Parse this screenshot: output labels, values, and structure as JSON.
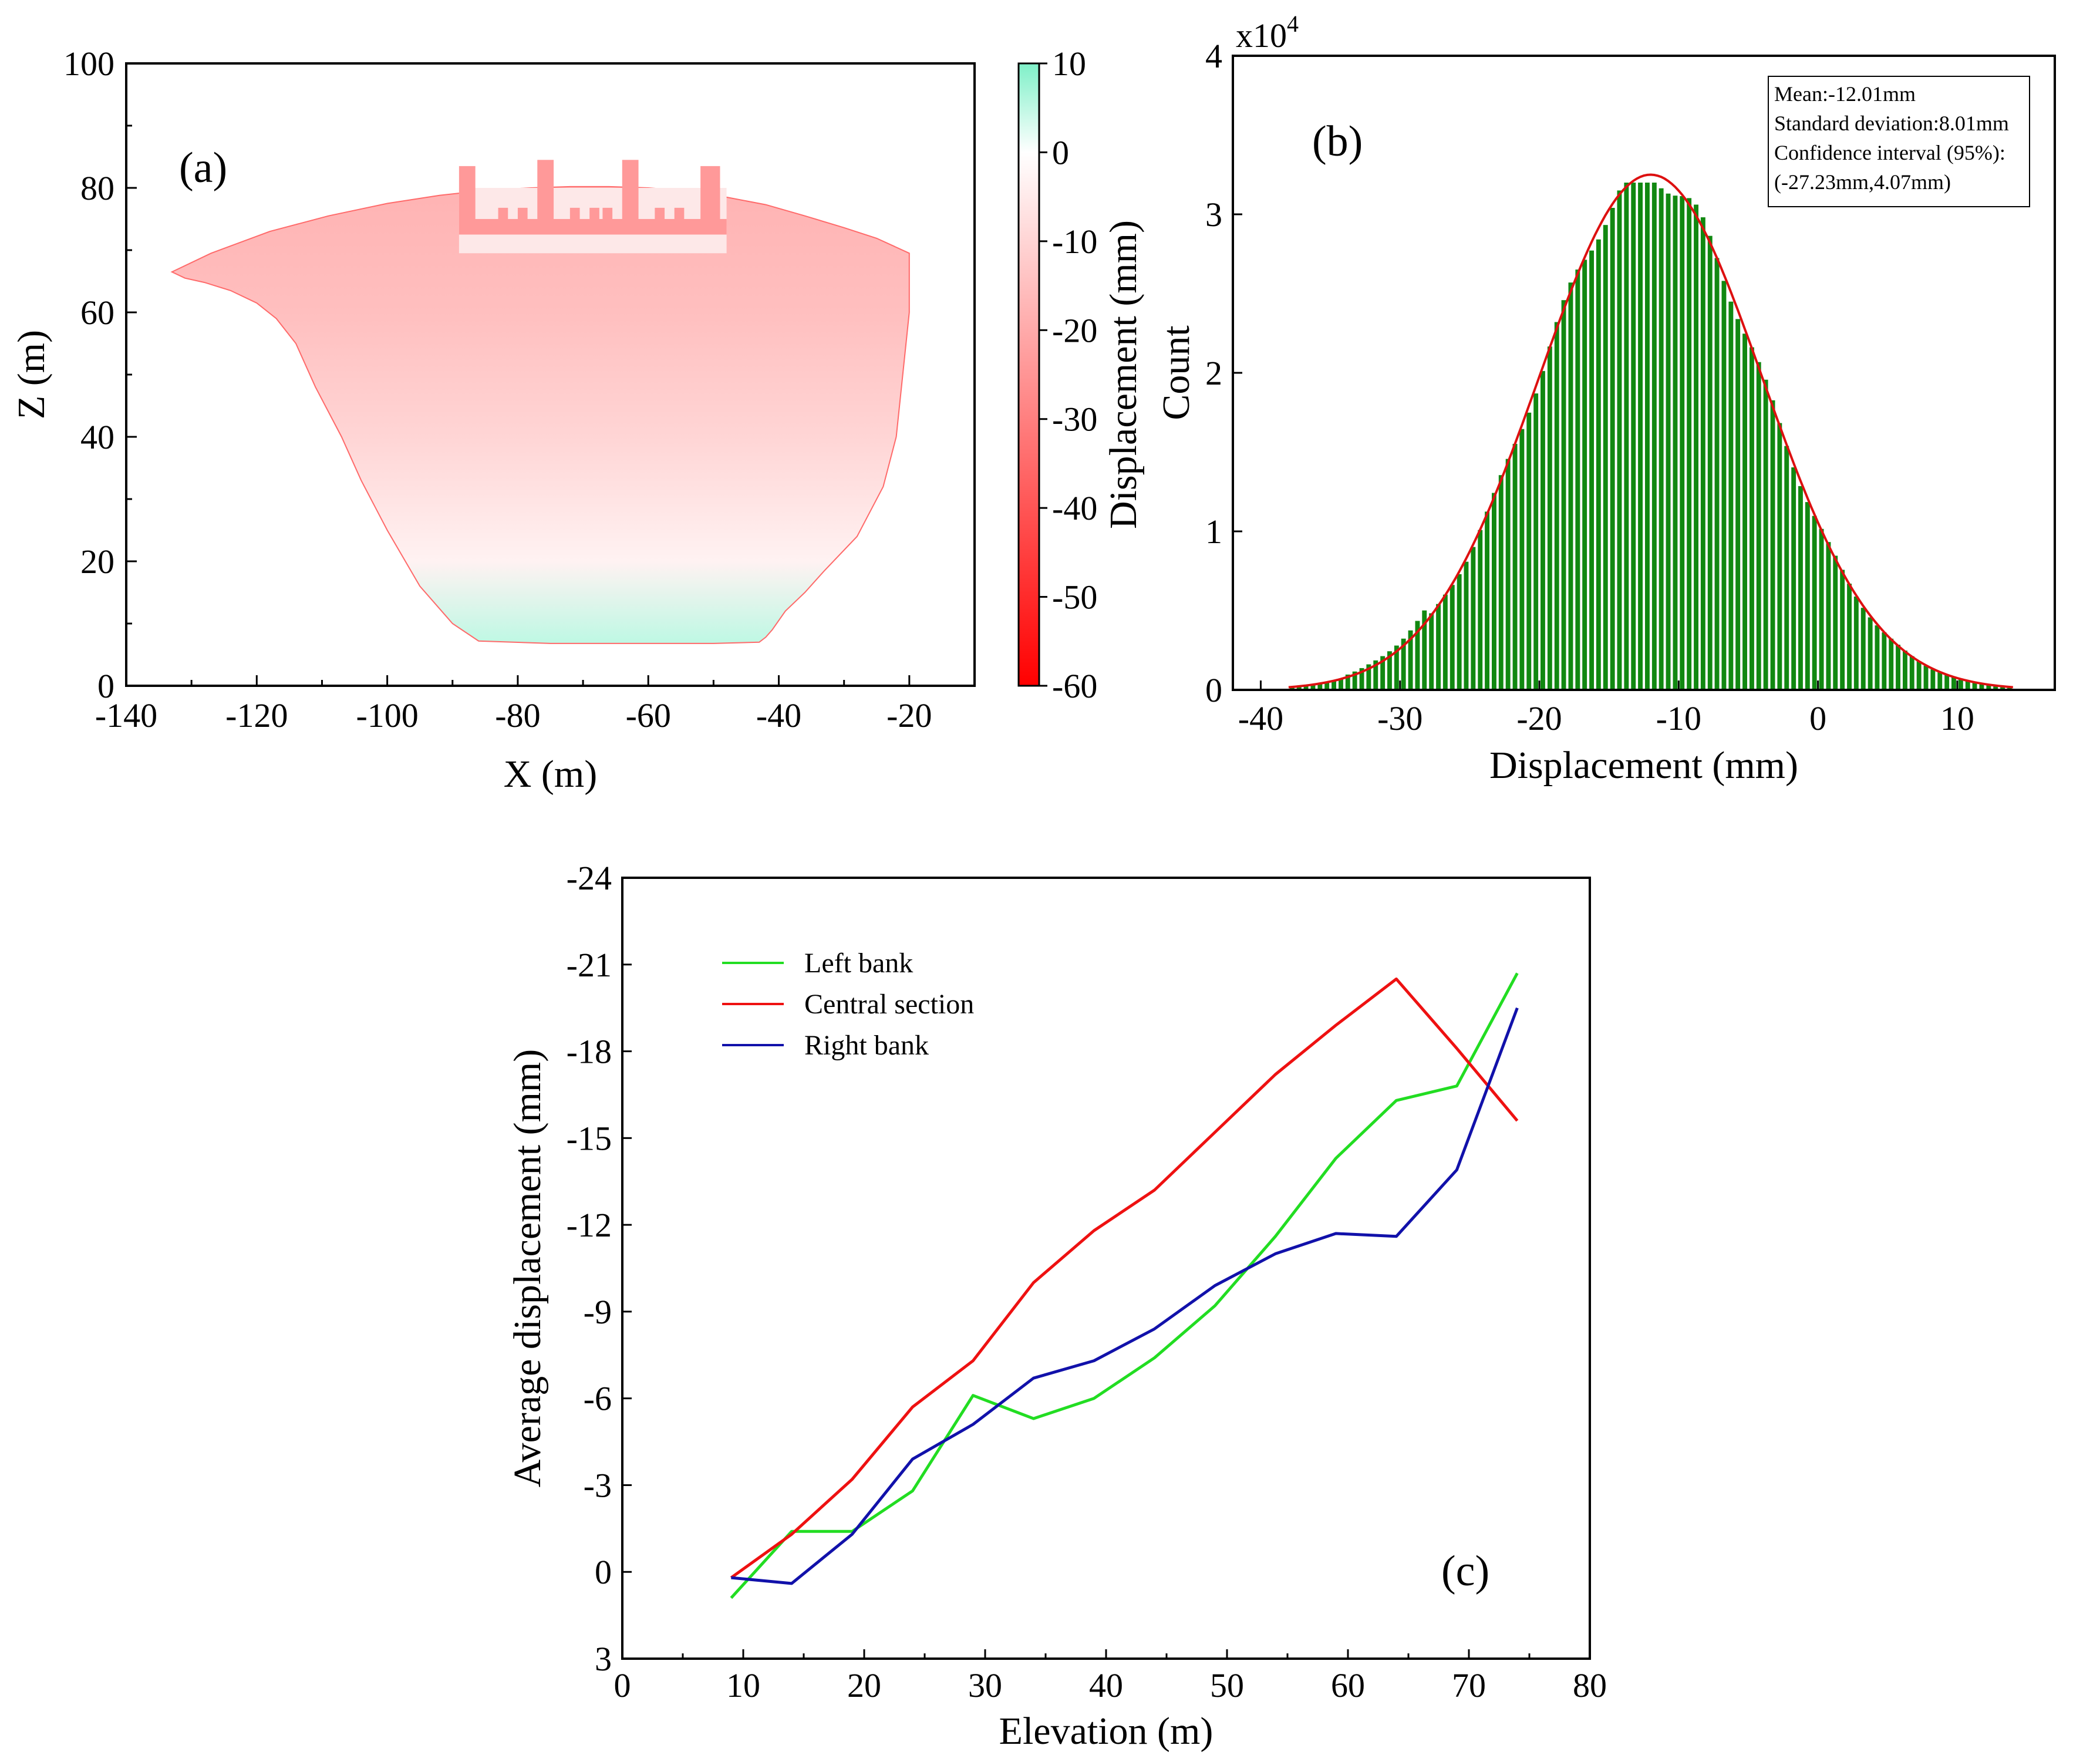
{
  "chart_data": [
    {
      "panel_label": "(a)",
      "type": "heatmap",
      "description_source": "displacement map of dam face",
      "xlabel": "X (m)",
      "ylabel": "Z (m)",
      "xlim": [
        -140,
        -10
      ],
      "ylim": [
        0,
        100
      ],
      "x_ticks": [
        -140,
        -120,
        -100,
        -80,
        -60,
        -40,
        -20
      ],
      "y_ticks": [
        0,
        20,
        40,
        60,
        80,
        100
      ],
      "colorbar": {
        "label": "Displacement (mm)",
        "range": [
          -60,
          10
        ],
        "ticks": [
          10,
          0,
          -10,
          -20,
          -30,
          -40,
          -50,
          -60
        ],
        "colors": {
          "low": "#ff0000",
          "mid": "#ffffff",
          "high": "#7ff0c8"
        }
      },
      "outline": {
        "x": [
          -133,
          -127,
          -118,
          -109,
          -100,
          -92,
          -85,
          -78,
          -72,
          -66,
          -60,
          -54,
          -48,
          -42,
          -36,
          -30,
          -25,
          -20,
          -20,
          -21,
          -22,
          -24,
          -28,
          -33,
          -36,
          -39,
          -41,
          -42,
          -43,
          -50,
          -60,
          -75,
          -86,
          -90,
          -95,
          -100,
          -104,
          -107,
          -111,
          -114,
          -117,
          -120,
          -124,
          -128,
          -131,
          -133
        ],
        "z": [
          66.5,
          69.5,
          73,
          75.5,
          77.5,
          78.8,
          79.6,
          80,
          80.2,
          80.2,
          80,
          79.5,
          78.5,
          77.3,
          75.5,
          73.6,
          71.9,
          69.5,
          60,
          50,
          40,
          32,
          24,
          18.5,
          15,
          12,
          9,
          7.8,
          7,
          6.8,
          6.8,
          6.8,
          7.2,
          10,
          16,
          25,
          33,
          40,
          48,
          55,
          59,
          61.5,
          63.5,
          64.8,
          65.5,
          66.5
        ]
      },
      "surface_values": [
        {
          "z": 80,
          "value": -18
        },
        {
          "z": 60,
          "value": -15
        },
        {
          "z": 40,
          "value": -10
        },
        {
          "z": 20,
          "value": -3
        },
        {
          "z": 7,
          "value": 5
        }
      ],
      "structure_value": -24
    },
    {
      "panel_label": "(b)",
      "type": "bar",
      "xlabel": "Displacement (mm)",
      "ylabel": "Count",
      "multiplier_label": "x10",
      "multiplier_exp": "4",
      "xlim": [
        -42,
        17
      ],
      "ylim": [
        0,
        4
      ],
      "x_ticks": [
        -40,
        -30,
        -20,
        -10,
        0,
        10
      ],
      "y_ticks": [
        0,
        1,
        2,
        3,
        4
      ],
      "bar_color": "#118811",
      "fit_color": "#dd1010",
      "hist": {
        "start": -38,
        "end": 14,
        "bin_width": 0.5
      },
      "fit": {
        "mean": -12.01,
        "std": 8.01,
        "peak": 3.25
      },
      "stats": [
        "Mean:-12.01mm",
        "Standard deviation:8.01mm",
        "Confidence interval (95%):",
        "(-27.23mm,4.07mm)"
      ]
    },
    {
      "panel_label": "(c)",
      "type": "line",
      "xlabel": "Elevation (m)",
      "ylabel": "Average displacement (mm)",
      "xlim": [
        0,
        80
      ],
      "ylim": [
        3,
        -24
      ],
      "x_ticks": [
        0,
        10,
        20,
        30,
        40,
        50,
        60,
        70,
        80
      ],
      "y_ticks": [
        -24,
        -21,
        -18,
        -15,
        -12,
        -9,
        -6,
        -3,
        0,
        3
      ],
      "series": [
        {
          "name": "Left bank",
          "color": "#22dd22",
          "x": [
            9,
            14,
            19,
            24,
            29,
            34,
            39,
            44,
            49,
            54,
            59,
            64,
            69,
            74
          ],
          "y": [
            0.9,
            -1.4,
            -1.4,
            -2.8,
            -6.1,
            -5.3,
            -6.0,
            -7.4,
            -9.2,
            -11.6,
            -14.3,
            -16.3,
            -16.8,
            -20.7
          ]
        },
        {
          "name": "Central section",
          "color": "#ee1111",
          "x": [
            9,
            14,
            19,
            24,
            29,
            34,
            39,
            44,
            49,
            54,
            59,
            64,
            69,
            74
          ],
          "y": [
            0.2,
            -1.3,
            -3.2,
            -5.7,
            -7.3,
            -10.0,
            -11.8,
            -13.2,
            -15.2,
            -17.2,
            -18.9,
            -20.5,
            -18.1,
            -15.6
          ]
        },
        {
          "name": "Right bank",
          "color": "#1111aa",
          "x": [
            9,
            14,
            19,
            24,
            29,
            34,
            39,
            44,
            49,
            54,
            59,
            64,
            69,
            74
          ],
          "y": [
            0.2,
            0.4,
            -1.3,
            -3.9,
            -5.1,
            -6.7,
            -7.3,
            -8.4,
            -9.9,
            -11.0,
            -11.7,
            -11.6,
            -13.9,
            -19.5
          ]
        }
      ]
    }
  ]
}
